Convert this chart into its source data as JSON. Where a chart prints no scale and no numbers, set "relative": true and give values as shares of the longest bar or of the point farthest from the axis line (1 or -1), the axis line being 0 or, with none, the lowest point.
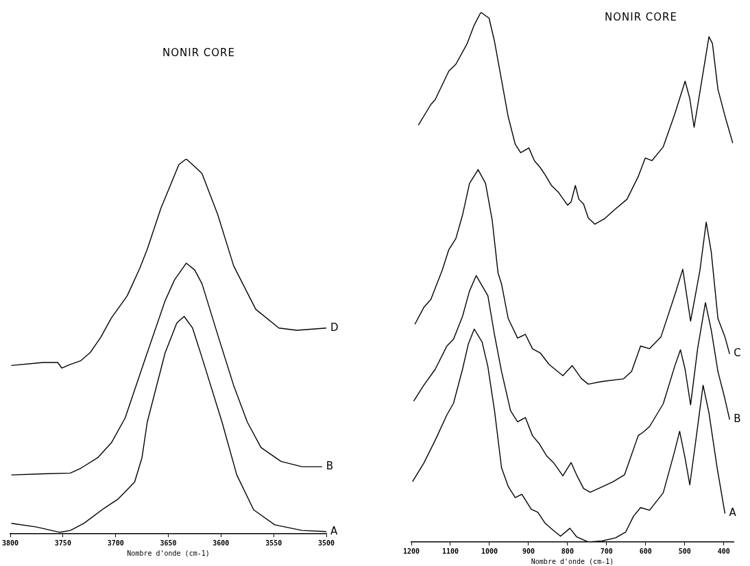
{
  "chart_data": [
    {
      "type": "line",
      "title": "NONIR CORE",
      "xlabel": "Nombre d'onde (cm-1)",
      "relative": true,
      "xlim": [
        3800,
        3500
      ],
      "xticks": [
        3800,
        3750,
        3700,
        3650,
        3600,
        3550,
        3500
      ],
      "grid": false,
      "legend": false,
      "marker": "none",
      "line_style": "solid",
      "series": [
        {
          "name": "D",
          "color": "#000000",
          "x": [
            3799,
            3769,
            3755,
            3751,
            3744,
            3733,
            3724,
            3714,
            3704,
            3689,
            3677,
            3670,
            3657,
            3648,
            3640,
            3633,
            3625,
            3618,
            3603,
            3588,
            3567,
            3545,
            3528,
            3500
          ],
          "values": [
            0.449,
            0.457,
            0.457,
            0.442,
            0.451,
            0.462,
            0.484,
            0.525,
            0.576,
            0.635,
            0.709,
            0.759,
            0.869,
            0.93,
            0.985,
            1.0,
            0.98,
            0.961,
            0.851,
            0.715,
            0.599,
            0.549,
            0.543,
            0.549
          ]
        },
        {
          "name": "B",
          "color": "#000000",
          "x": [
            3799,
            3769,
            3743,
            3733,
            3717,
            3704,
            3691,
            3670,
            3653,
            3644,
            3633,
            3625,
            3618,
            3603,
            3588,
            3575,
            3562,
            3543,
            3523,
            3504
          ],
          "values": [
            0.157,
            0.16,
            0.162,
            0.175,
            0.203,
            0.243,
            0.309,
            0.483,
            0.622,
            0.678,
            0.722,
            0.704,
            0.667,
            0.53,
            0.396,
            0.298,
            0.23,
            0.193,
            0.179,
            0.179
          ]
        },
        {
          "name": "A",
          "color": "#000000",
          "x": [
            3799,
            3775,
            3753,
            3743,
            3730,
            3711,
            3698,
            3682,
            3675,
            3670,
            3653,
            3642,
            3635,
            3627,
            3618,
            3599,
            3585,
            3569,
            3549,
            3523,
            3500
          ],
          "values": [
            0.028,
            0.018,
            0.004,
            0.009,
            0.028,
            0.068,
            0.092,
            0.138,
            0.203,
            0.298,
            0.483,
            0.562,
            0.58,
            0.549,
            0.47,
            0.298,
            0.157,
            0.064,
            0.024,
            0.009,
            0.006
          ]
        }
      ]
    },
    {
      "type": "line",
      "title": "NONIR CORE",
      "xlabel": "Nombre d'onde (cm-1)",
      "relative": true,
      "xlim": [
        1200,
        375
      ],
      "xticks": [
        1200,
        1100,
        1000,
        900,
        800,
        700,
        600,
        500,
        400
      ],
      "grid": false,
      "legend": false,
      "marker": "none",
      "line_style": "solid",
      "series": [
        {
          "color": "#000000",
          "x": [
            1182,
            1150,
            1139,
            1104,
            1086,
            1057,
            1039,
            1022,
            1001,
            987,
            969,
            952,
            934,
            920,
            899,
            885,
            870,
            858,
            841,
            823,
            800,
            791,
            780,
            771,
            759,
            747,
            730,
            706,
            677,
            648,
            619,
            601,
            584,
            555,
            526,
            499,
            487,
            476,
            461,
            438,
            429,
            415,
            398,
            377
          ],
          "values": [
            0.787,
            0.826,
            0.835,
            0.889,
            0.902,
            0.941,
            0.976,
            1.0,
            0.989,
            0.945,
            0.872,
            0.803,
            0.751,
            0.735,
            0.744,
            0.72,
            0.707,
            0.694,
            0.673,
            0.66,
            0.636,
            0.642,
            0.673,
            0.647,
            0.638,
            0.612,
            0.6,
            0.61,
            0.629,
            0.647,
            0.69,
            0.725,
            0.72,
            0.746,
            0.807,
            0.87,
            0.837,
            0.783,
            0.85,
            0.954,
            0.941,
            0.855,
            0.807,
            0.753
          ]
        },
        {
          "name": "C",
          "color": "#000000",
          "x": [
            1191,
            1168,
            1150,
            1121,
            1104,
            1086,
            1069,
            1051,
            1029,
            1010,
            993,
            978,
            969,
            952,
            928,
            908,
            890,
            870,
            847,
            812,
            788,
            765,
            747,
            712,
            657,
            636,
            613,
            590,
            561,
            526,
            505,
            485,
            461,
            445,
            432,
            415,
            397,
            385
          ],
          "values": [
            0.411,
            0.443,
            0.458,
            0.513,
            0.552,
            0.573,
            0.617,
            0.677,
            0.703,
            0.677,
            0.608,
            0.508,
            0.487,
            0.422,
            0.385,
            0.392,
            0.365,
            0.357,
            0.335,
            0.314,
            0.333,
            0.309,
            0.298,
            0.303,
            0.308,
            0.322,
            0.37,
            0.365,
            0.387,
            0.465,
            0.515,
            0.417,
            0.513,
            0.604,
            0.547,
            0.422,
            0.387,
            0.355
          ]
        },
        {
          "name": "B",
          "color": "#000000",
          "x": [
            1194,
            1168,
            1139,
            1109,
            1092,
            1069,
            1051,
            1034,
            1004,
            987,
            969,
            946,
            928,
            908,
            890,
            873,
            853,
            835,
            812,
            791,
            777,
            759,
            742,
            712,
            683,
            654,
            619,
            607,
            590,
            555,
            526,
            511,
            499,
            485,
            467,
            447,
            432,
            415,
            397,
            385
          ],
          "values": [
            0.266,
            0.296,
            0.326,
            0.37,
            0.383,
            0.426,
            0.474,
            0.503,
            0.465,
            0.391,
            0.322,
            0.248,
            0.227,
            0.235,
            0.201,
            0.186,
            0.162,
            0.149,
            0.125,
            0.15,
            0.127,
            0.101,
            0.094,
            0.104,
            0.114,
            0.127,
            0.201,
            0.207,
            0.218,
            0.261,
            0.331,
            0.363,
            0.326,
            0.259,
            0.365,
            0.452,
            0.4,
            0.322,
            0.27,
            0.231
          ]
        },
        {
          "name": "A",
          "color": "#000000",
          "x": [
            1197,
            1168,
            1139,
            1109,
            1092,
            1069,
            1054,
            1039,
            1019,
            1004,
            987,
            969,
            952,
            934,
            917,
            893,
            876,
            858,
            838,
            818,
            794,
            777,
            747,
            712,
            677,
            651,
            631,
            613,
            590,
            555,
            526,
            513,
            499,
            487,
            473,
            453,
            438,
            417,
            397
          ],
          "values": [
            0.114,
            0.149,
            0.192,
            0.24,
            0.262,
            0.326,
            0.374,
            0.402,
            0.378,
            0.331,
            0.248,
            0.14,
            0.105,
            0.084,
            0.09,
            0.062,
            0.056,
            0.036,
            0.023,
            0.011,
            0.026,
            0.01,
            0,
            0.002,
            0.008,
            0.019,
            0.049,
            0.065,
            0.06,
            0.093,
            0.171,
            0.209,
            0.158,
            0.108,
            0.184,
            0.296,
            0.244,
            0.14,
            0.054
          ]
        }
      ]
    }
  ]
}
